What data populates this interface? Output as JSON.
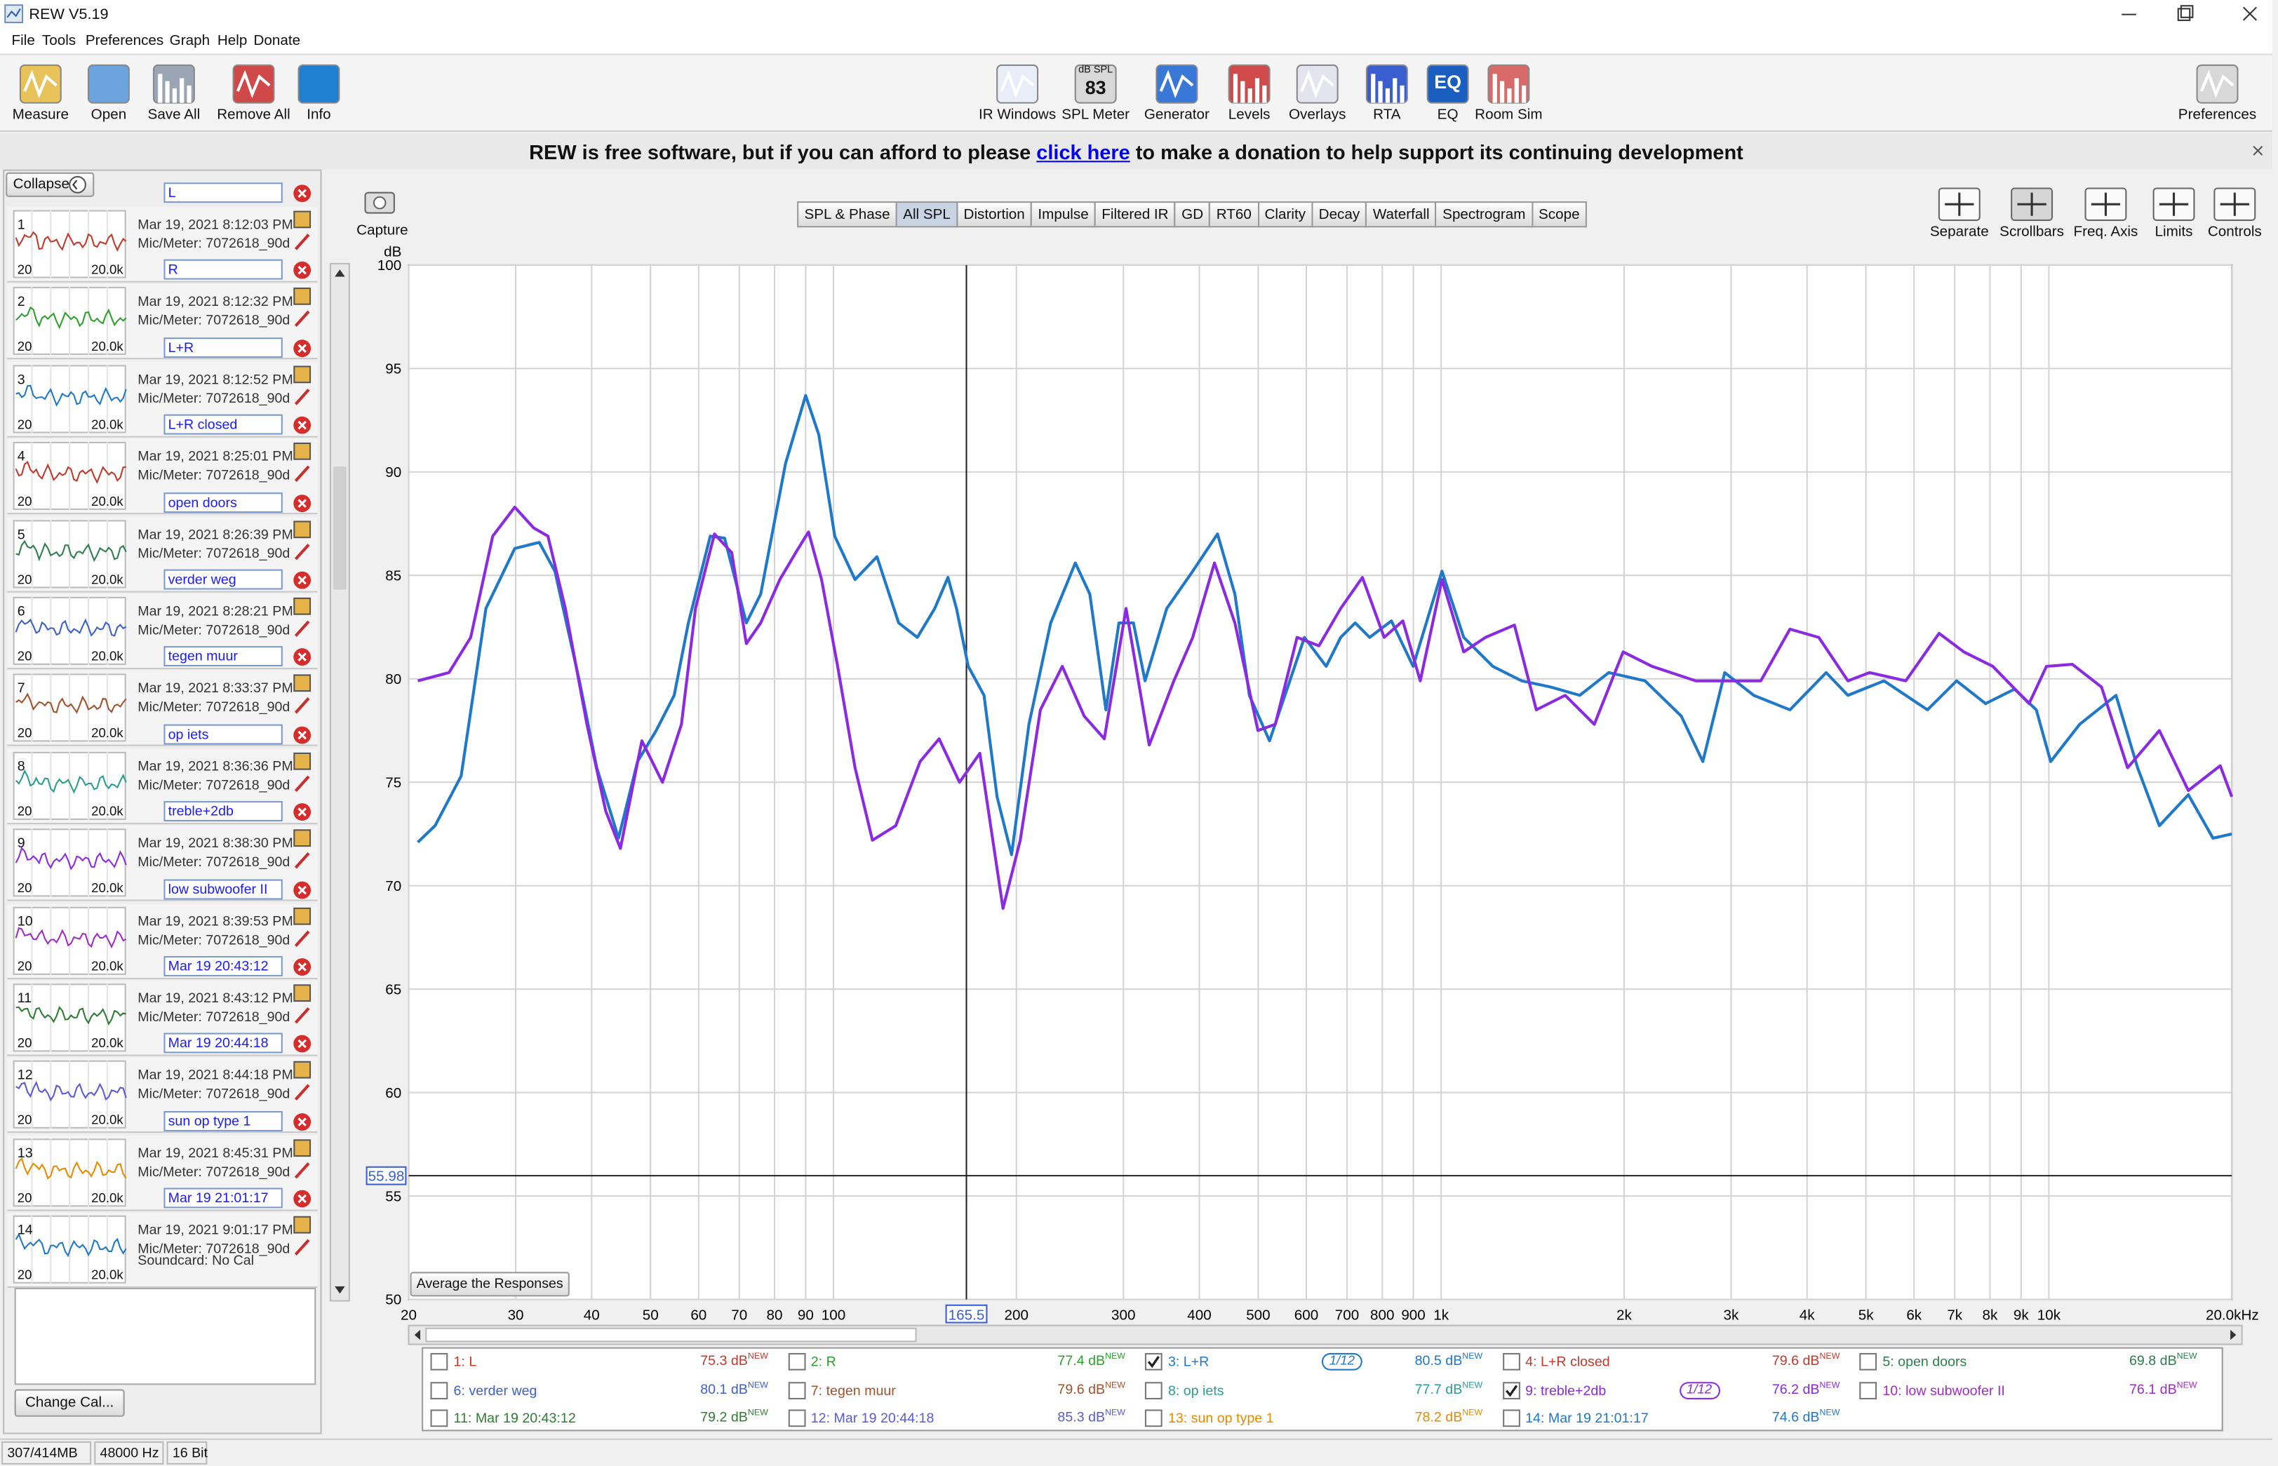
{
  "window": {
    "title": "REW V5.19"
  },
  "menu": [
    "File",
    "Tools",
    "Preferences",
    "Graph",
    "Help",
    "Donate"
  ],
  "toolbar": {
    "left": [
      "Measure",
      "Open",
      "Save All",
      "Remove All",
      "Info"
    ],
    "center": [
      "IR Windows",
      "SPL Meter",
      "Generator",
      "Levels",
      "Overlays",
      "RTA",
      "EQ",
      "Room Sim"
    ],
    "right": [
      "Preferences"
    ],
    "spl_meter": {
      "unit": "dB SPL",
      "reading": "83"
    },
    "eq_icon": "EQ"
  },
  "banner": {
    "text": "REW is free software, but if you can afford to please",
    "link": "click here",
    "text_after": "to make a donation to help support its continuing development"
  },
  "measurements_panel": {
    "collapse": "Collapse",
    "thumb_axis": [
      "20",
      "20.0k"
    ],
    "items": [
      {
        "number": "1",
        "name": "L",
        "date": "Mar 19, 2021 8:12:03 PM",
        "mic": "Mic/Meter: 7072618_90d",
        "color": "#c0392b"
      },
      {
        "number": "2",
        "name": "R",
        "date": "Mar 19, 2021 8:12:32 PM",
        "mic": "Mic/Meter: 7072618_90d",
        "color": "#2ca02c"
      },
      {
        "number": "3",
        "name": "L+R",
        "date": "Mar 19, 2021 8:12:52 PM",
        "mic": "Mic/Meter: 7072618_90d",
        "color": "#1f78c8"
      },
      {
        "number": "4",
        "name": "L+R closed",
        "date": "Mar 19, 2021 8:25:01 PM",
        "mic": "Mic/Meter: 7072618_90d",
        "color": "#c0392b"
      },
      {
        "number": "5",
        "name": "open doors",
        "date": "Mar 19, 2021 8:26:39 PM",
        "mic": "Mic/Meter: 7072618_90d",
        "color": "#2e7d4f"
      },
      {
        "number": "6",
        "name": "verder weg",
        "date": "Mar 19, 2021 8:28:21 PM",
        "mic": "Mic/Meter: 7072618_90d",
        "color": "#3c5fc8"
      },
      {
        "number": "7",
        "name": "tegen muur",
        "date": "Mar 19, 2021 8:33:37 PM",
        "mic": "Mic/Meter: 7072618_90d",
        "color": "#a0522d"
      },
      {
        "number": "8",
        "name": "op iets",
        "date": "Mar 19, 2021 8:36:36 PM",
        "mic": "Mic/Meter: 7072618_90d",
        "color": "#2a9d8f"
      },
      {
        "number": "9",
        "name": "treble+2db",
        "date": "Mar 19, 2021 8:38:30 PM",
        "mic": "Mic/Meter: 7072618_90d",
        "color": "#8a2be2"
      },
      {
        "number": "10",
        "name": "low subwoofer  II",
        "date": "Mar 19, 2021 8:39:53 PM",
        "mic": "Mic/Meter: 7072618_90d",
        "color": "#a02cc8"
      },
      {
        "number": "11",
        "name": "Mar 19 20:43:12",
        "date": "Mar 19, 2021 8:43:12 PM",
        "mic": "Mic/Meter: 7072618_90d",
        "color": "#2e7d32"
      },
      {
        "number": "12",
        "name": "Mar 19 20:44:18",
        "date": "Mar 19, 2021 8:44:18 PM",
        "mic": "Mic/Meter: 7072618_90d",
        "color": "#5a5ad6"
      },
      {
        "number": "13",
        "name": "sun op type 1",
        "date": "Mar 19, 2021 8:45:31 PM",
        "mic": "Mic/Meter: 7072618_90d",
        "color": "#e68a00"
      },
      {
        "number": "14",
        "name": "Mar 19 21:01:17",
        "date": "Mar 19, 2021 9:01:17 PM",
        "mic": "Mic/Meter: 7072618_90d",
        "color": "#1f78c8"
      }
    ],
    "soundcard": "Soundcard: No Cal",
    "change_cal": "Change Cal..."
  },
  "graph": {
    "capture": "Capture",
    "tabs": [
      "SPL & Phase",
      "All SPL",
      "Distortion",
      "Impulse",
      "Filtered IR",
      "GD",
      "RT60",
      "Clarity",
      "Decay",
      "Waterfall",
      "Spectrogram",
      "Scope"
    ],
    "selected_tab": 1,
    "tools": [
      "Separate",
      "Scrollbars",
      "Freq. Axis",
      "Limits",
      "Controls"
    ],
    "y_label": "dB",
    "ylim": [
      50,
      100
    ],
    "yticks": [
      50,
      55,
      60,
      65,
      70,
      75,
      80,
      85,
      90,
      95,
      100
    ],
    "xscale": "log",
    "xlim": [
      20,
      20000
    ],
    "xticks": [
      20,
      30,
      40,
      50,
      60,
      70,
      80,
      90,
      100,
      200,
      300,
      400,
      500,
      600,
      700,
      800,
      900,
      {
        "value": 1000,
        "label": "1k"
      },
      {
        "value": 2000,
        "label": "2k"
      },
      {
        "value": 3000,
        "label": "3k"
      },
      {
        "value": 4000,
        "label": "4k"
      },
      {
        "value": 5000,
        "label": "5k"
      },
      {
        "value": 6000,
        "label": "6k"
      },
      {
        "value": 7000,
        "label": "7k"
      },
      {
        "value": 8000,
        "label": "8k"
      },
      {
        "value": 9000,
        "label": "9k"
      },
      {
        "value": 10000,
        "label": "10k"
      },
      {
        "value": 20000,
        "label": "20.0kHz"
      }
    ],
    "grid": true,
    "cursor": {
      "x": {
        "value": 165.5,
        "label": "165.5"
      },
      "y": {
        "value": 55.98,
        "label": "55.98"
      }
    },
    "average_button": "Average the Responses",
    "series": [
      {
        "color": "#1f78c8",
        "x": [
          20.7,
          22.1,
          24.4,
          26.8,
          29.9,
          32.8,
          34.8,
          38.2,
          40.8,
          44.3,
          47.6,
          51.1,
          54.7,
          57.7,
          62.7,
          66.2,
          71.9,
          75.9,
          83.4,
          90.0,
          94.6,
          100.5,
          108.5,
          117.9,
          128.0,
          137.4,
          146.8,
          154.3,
          159.4,
          166.6,
          176.9,
          185.9,
          196.4,
          209.8,
          227.8,
          250.1,
          264.2,
          280.7,
          294.9,
          311.6,
          325.6,
          353.5,
          390.2,
          428.4,
          457.6,
          483.5,
          521.9,
          563.7,
          595.6,
          646.9,
          683.4,
          722.0,
          762.9,
          828.0,
          899.4,
          1003,
          1089,
          1216,
          1357,
          1515,
          1691,
          1887,
          2165,
          2483,
          2696,
          2928,
          3268,
          3749,
          4300,
          4669,
          5355,
          6314,
          7049,
          7866,
          8779,
          9533,
          10070,
          11239,
          12896,
          13996,
          15200,
          16965,
          18627,
          20000
        ],
        "values": [
          72.1,
          72.9,
          75.3,
          83.4,
          86.3,
          86.6,
          85.2,
          79.9,
          75.7,
          72.3,
          76.0,
          77.5,
          79.2,
          82.7,
          86.9,
          86.8,
          82.7,
          84.1,
          90.4,
          93.7,
          91.8,
          86.9,
          84.8,
          85.9,
          82.7,
          82.0,
          83.4,
          84.9,
          83.4,
          80.6,
          79.2,
          74.3,
          71.5,
          77.8,
          82.7,
          85.6,
          84.1,
          78.5,
          82.7,
          82.7,
          79.9,
          83.4,
          85.2,
          87.0,
          84.1,
          79.2,
          77.0,
          79.9,
          82.0,
          80.6,
          82.0,
          82.7,
          82.0,
          82.8,
          80.6,
          85.2,
          82.0,
          80.6,
          79.9,
          79.6,
          79.2,
          80.3,
          79.9,
          78.2,
          76.0,
          80.3,
          79.2,
          78.5,
          80.3,
          79.2,
          79.9,
          78.5,
          79.9,
          78.8,
          79.5,
          78.5,
          76.0,
          77.8,
          79.2,
          75.7,
          72.9,
          74.4,
          72.3,
          72.5
        ]
      },
      {
        "color": "#8a2be2",
        "x": [
          20.7,
          23.3,
          25.3,
          27.5,
          29.9,
          32.1,
          33.9,
          36.2,
          39.3,
          42.2,
          44.6,
          48.4,
          52.3,
          56.2,
          59.3,
          63.7,
          68.0,
          71.9,
          75.9,
          81.6,
          87.1,
          91.0,
          95.6,
          101.6,
          108.5,
          115.9,
          126.6,
          138.9,
          149.2,
          161.2,
          174.1,
          190.1,
          202.9,
          219.1,
          238.0,
          258.5,
          279.1,
          303.1,
          330.9,
          363.3,
          390.2,
          423.7,
          457.6,
          499.4,
          533.4,
          579.4,
          629.3,
          683.4,
          742.0,
          805.8,
          865.0,
          924.0,
          1003,
          1089,
          1183,
          1320,
          1434,
          1600,
          1786,
          1993,
          2224,
          2623,
          3009,
          3358,
          3749,
          4183,
          4669,
          5067,
          5813,
          6597,
          7245,
          8087,
          9278,
          9907,
          10935,
          12205,
          13473,
          15200,
          16965,
          19143,
          20000
        ],
        "values": [
          79.9,
          80.3,
          82.0,
          86.9,
          88.3,
          87.3,
          86.9,
          83.4,
          77.8,
          73.6,
          71.8,
          77.0,
          75.0,
          77.8,
          83.4,
          87.0,
          86.1,
          81.7,
          82.7,
          84.8,
          86.2,
          87.1,
          84.8,
          80.6,
          75.7,
          72.2,
          72.9,
          76.0,
          77.1,
          75.0,
          76.4,
          68.9,
          72.2,
          78.5,
          80.6,
          78.2,
          77.1,
          83.4,
          76.8,
          79.9,
          82.0,
          85.6,
          82.7,
          77.5,
          77.8,
          82.0,
          81.6,
          83.4,
          84.9,
          82.0,
          82.8,
          79.9,
          84.8,
          81.3,
          82.0,
          82.6,
          78.5,
          79.2,
          77.8,
          81.3,
          80.6,
          79.9,
          79.9,
          79.9,
          82.4,
          82.0,
          79.9,
          80.3,
          79.9,
          82.2,
          81.3,
          80.6,
          78.8,
          80.6,
          80.7,
          79.6,
          75.7,
          77.5,
          74.6,
          75.8,
          74.3
        ]
      }
    ]
  },
  "legend": {
    "new_tag": "NEW",
    "entries": [
      {
        "label": "1: L",
        "level": "75.3 dB",
        "checked": false
      },
      {
        "label": "2: R",
        "level": "77.4 dB",
        "checked": false
      },
      {
        "label": "3: L+R",
        "level": "80.5 dB",
        "checked": true,
        "smoothing": "1/12"
      },
      {
        "label": "4: L+R closed",
        "level": "79.6 dB",
        "checked": false
      },
      {
        "label": "5: open doors",
        "level": "69.8 dB",
        "checked": false
      },
      {
        "label": "6: verder weg",
        "level": "80.1 dB",
        "checked": false
      },
      {
        "label": "7: tegen muur",
        "level": "79.6 dB",
        "checked": false
      },
      {
        "label": "8: op iets",
        "level": "77.7 dB",
        "checked": false
      },
      {
        "label": "9: treble+2db",
        "level": "76.2 dB",
        "checked": true,
        "smoothing": "1/12"
      },
      {
        "label": "10: low subwoofer  II",
        "level": "76.1 dB",
        "checked": false
      },
      {
        "label": "11: Mar 19 20:43:12",
        "level": "79.2 dB",
        "checked": false
      },
      {
        "label": "12: Mar 19 20:44:18",
        "level": "85.3 dB",
        "checked": false
      },
      {
        "label": "13: sun op type 1",
        "level": "78.2 dB",
        "checked": false
      },
      {
        "label": "14: Mar 19 21:01:17",
        "level": "74.6 dB",
        "checked": false
      }
    ]
  },
  "status": [
    "307/414MB",
    "48000 Hz",
    "16 Bit"
  ]
}
